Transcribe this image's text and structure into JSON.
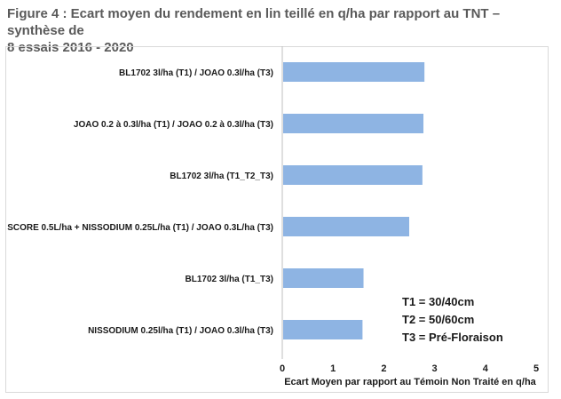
{
  "figure": {
    "title_line1": "Figure 4 : Ecart moyen du rendement en lin teillé en q/ha par rapport au TNT – synthèse de",
    "title_line2": "8 essais 2016 - 2020"
  },
  "legend_notes": [
    "T1 = 30/40cm",
    "T2 = 50/60cm",
    "T3 = Pré-Floraison"
  ],
  "colors": {
    "bar": "#8eb4e3",
    "axis": "#bfbfbf",
    "text": "#1a1a1a"
  },
  "chart_data": {
    "type": "bar",
    "orientation": "horizontal",
    "categories": [
      "BL1702 3l/ha (T1) / JOAO 0.3l/ha (T3)",
      "JOAO 0.2 à 0.3l/ha (T1) / JOAO 0.2 à 0.3l/ha (T3)",
      "BL1702 3l/ha (T1_T2_T3)",
      "SCORE 0.5L/ha + NISSODIUM 0.25L/ha (T1) / JOAO 0.3L/ha (T3)",
      "BL1702 3l/ha (T1_T3)",
      "NISSODIUM 0.25l/ha (T1) / JOAO 0.3l/ha (T3)"
    ],
    "values": [
      2.8,
      2.78,
      2.76,
      2.5,
      1.6,
      1.58
    ],
    "xlabel": "Ecart Moyen  par rapport au Témoin Non Traité en q/ha",
    "xlim": [
      0,
      5
    ],
    "xticks": [
      "0",
      "1",
      "2",
      "3",
      "4",
      "5"
    ],
    "grid": false
  }
}
